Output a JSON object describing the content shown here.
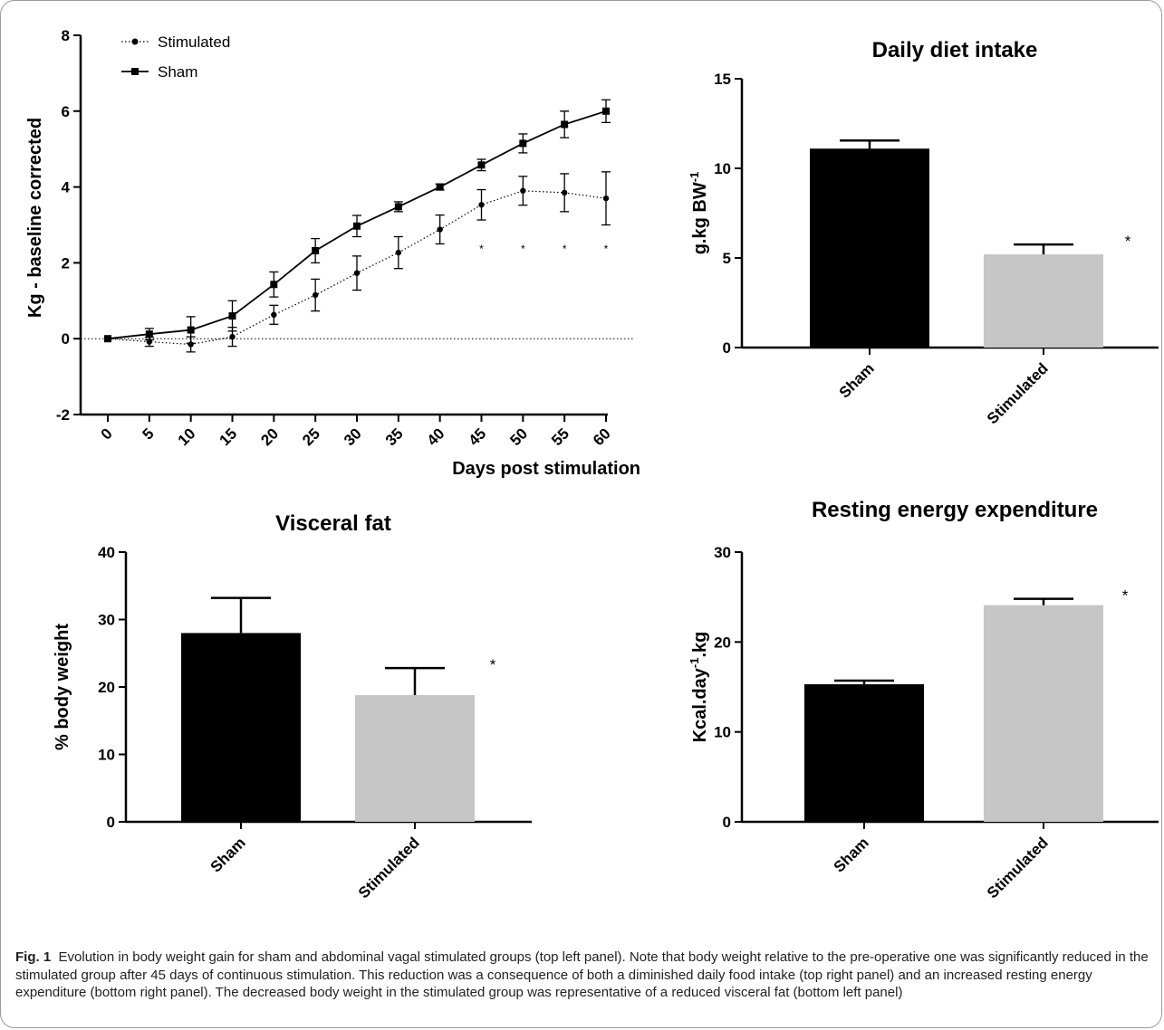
{
  "chart_data": [
    {
      "type": "line",
      "title": "",
      "xlabel": "Days post stimulation",
      "ylabel": "Kg - baseline corrected",
      "xlim": [
        0,
        60
      ],
      "ylim": [
        -2,
        8
      ],
      "x_ticks": [
        "0",
        "5",
        "10",
        "15",
        "20",
        "25",
        "30",
        "35",
        "40",
        "45",
        "50",
        "55",
        "60"
      ],
      "y_ticks": [
        "-2",
        "0",
        "2",
        "4",
        "6",
        "8"
      ],
      "x": [
        0,
        5,
        10,
        15,
        20,
        25,
        30,
        35,
        40,
        45,
        50,
        55,
        60
      ],
      "legend_position": "top-left",
      "series": [
        {
          "name": "Stimulated",
          "style": "dotted, circle markers",
          "values": [
            0,
            -0.08,
            -0.15,
            0.05,
            0.63,
            1.15,
            1.73,
            2.27,
            2.88,
            3.53,
            3.9,
            3.85,
            3.7
          ],
          "error": [
            0,
            0.12,
            0.2,
            0.25,
            0.25,
            0.42,
            0.45,
            0.42,
            0.38,
            0.4,
            0.38,
            0.5,
            0.7
          ]
        },
        {
          "name": "Sham",
          "style": "solid, square markers",
          "values": [
            0,
            0.12,
            0.23,
            0.6,
            1.43,
            2.32,
            2.97,
            3.48,
            4.0,
            4.58,
            5.15,
            5.65,
            6.0
          ],
          "error": [
            0,
            0.15,
            0.35,
            0.4,
            0.33,
            0.32,
            0.28,
            0.13,
            0.08,
            0.15,
            0.25,
            0.35,
            0.3
          ]
        }
      ],
      "significance_marker": "*",
      "significance_x": [
        45,
        50,
        55,
        60
      ]
    },
    {
      "type": "bar",
      "title": "Daily diet intake",
      "xlabel": "",
      "ylabel": "g.kg BW",
      "ylabel_sup": "-1",
      "ylim": [
        0,
        15
      ],
      "y_ticks": [
        "0",
        "5",
        "10",
        "15"
      ],
      "categories": [
        "Sham",
        "Stimulated"
      ],
      "values": [
        11.1,
        5.2
      ],
      "error": [
        0.45,
        0.55
      ],
      "colors": [
        "#000000",
        "#c6c6c6"
      ],
      "significance_marker": "*"
    },
    {
      "type": "bar",
      "title": "Visceral fat",
      "xlabel": "",
      "ylabel": "% body weight",
      "ylim": [
        0,
        40
      ],
      "y_ticks": [
        "0",
        "10",
        "20",
        "30",
        "40"
      ],
      "categories": [
        "Sham",
        "Stimulated"
      ],
      "values": [
        28.0,
        18.8
      ],
      "error": [
        5.2,
        4.0
      ],
      "colors": [
        "#000000",
        "#c6c6c6"
      ],
      "significance_marker": "*"
    },
    {
      "type": "bar",
      "title": "Resting energy expenditure",
      "xlabel": "",
      "ylabel": "Kcal.day",
      "ylabel_sup": "-1",
      "ylabel_tail": ".kg",
      "ylim": [
        0,
        30
      ],
      "y_ticks": [
        "0",
        "10",
        "20",
        "30"
      ],
      "categories": [
        "Sham",
        "Stimulated"
      ],
      "values": [
        15.3,
        24.1
      ],
      "error": [
        0.4,
        0.7
      ],
      "colors": [
        "#000000",
        "#c6c6c6"
      ],
      "significance_marker": "*"
    }
  ],
  "caption": {
    "label": "Fig. 1",
    "text": "Evolution in body weight gain for sham and abdominal vagal stimulated groups (top left panel). Note that body weight relative to the pre-operative one was significantly reduced in the stimulated group after 45 days of continuous stimulation. This reduction was a consequence of both a diminished daily food intake (top right panel) and an increased resting energy expenditure (bottom right panel). The decreased body weight in the stimulated group was representative of a reduced visceral fat (bottom left panel)"
  }
}
